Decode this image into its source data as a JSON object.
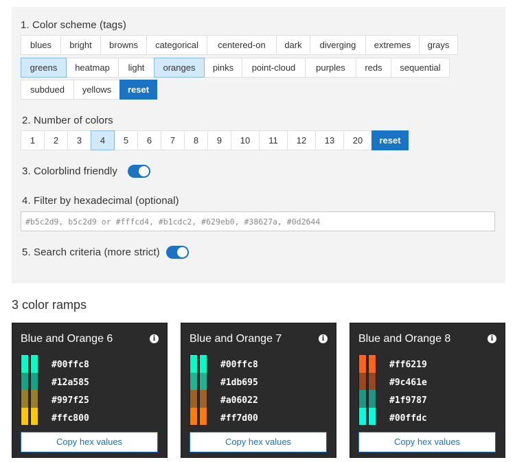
{
  "colors": {
    "accent": "#1a73c3",
    "selected_bg": "#d2e9f9",
    "panel_bg": "#f3f3f3",
    "card_bg": "#2b2b2b"
  },
  "section1": {
    "label": "1. Color scheme (tags)",
    "rows": [
      [
        {
          "label": "blues",
          "selected": false
        },
        {
          "label": "bright",
          "selected": false
        },
        {
          "label": "browns",
          "selected": false
        },
        {
          "label": "categorical",
          "selected": false
        },
        {
          "label": "centered-on",
          "selected": false
        },
        {
          "label": "dark",
          "selected": false
        },
        {
          "label": "diverging",
          "selected": false
        },
        {
          "label": "extremes",
          "selected": false
        },
        {
          "label": "grays",
          "selected": false
        }
      ],
      [
        {
          "label": "greens",
          "selected": true
        },
        {
          "label": "heatmap",
          "selected": false
        },
        {
          "label": "light",
          "selected": false
        },
        {
          "label": "oranges",
          "selected": true
        },
        {
          "label": "pinks",
          "selected": false
        },
        {
          "label": "point-cloud",
          "selected": false
        },
        {
          "label": "purples",
          "selected": false
        },
        {
          "label": "reds",
          "selected": false
        },
        {
          "label": "sequential",
          "selected": false
        }
      ],
      [
        {
          "label": "subdued",
          "selected": false
        },
        {
          "label": "yellows",
          "selected": false
        }
      ]
    ],
    "reset_label": "reset"
  },
  "section2": {
    "label": "2. Number of colors",
    "options": [
      {
        "label": "1",
        "selected": false
      },
      {
        "label": "2",
        "selected": false
      },
      {
        "label": "3",
        "selected": false
      },
      {
        "label": "4",
        "selected": true
      },
      {
        "label": "5",
        "selected": false
      },
      {
        "label": "6",
        "selected": false
      },
      {
        "label": "7",
        "selected": false
      },
      {
        "label": "8",
        "selected": false
      },
      {
        "label": "9",
        "selected": false
      },
      {
        "label": "10",
        "selected": false
      },
      {
        "label": "11",
        "selected": false
      },
      {
        "label": "12",
        "selected": false
      },
      {
        "label": "13",
        "selected": false
      },
      {
        "label": "20",
        "selected": false
      }
    ],
    "reset_label": "reset"
  },
  "section3": {
    "label": "3. Colorblind friendly",
    "enabled": true
  },
  "section4": {
    "label": "4. Filter by hexadecimal (optional)",
    "value": "",
    "placeholder": "#b5c2d9, b5c2d9 or #fffcd4, #b1cdc2, #629eb0, #38627a, #0d2644"
  },
  "section5": {
    "label": "5. Search criteria (more strict)",
    "enabled": true
  },
  "results": {
    "title": "3 color ramps",
    "copy_label": "Copy hex values",
    "ramps": [
      {
        "name": "Blue and Orange 6",
        "colors": [
          "#00ffc8",
          "#12a585",
          "#997f25",
          "#ffc800"
        ]
      },
      {
        "name": "Blue and Orange 7",
        "colors": [
          "#00ffc8",
          "#1db695",
          "#a06022",
          "#ff7d00"
        ]
      },
      {
        "name": "Blue and Orange 8",
        "colors": [
          "#ff6219",
          "#9c461e",
          "#1f9787",
          "#00ffdc"
        ]
      }
    ]
  }
}
